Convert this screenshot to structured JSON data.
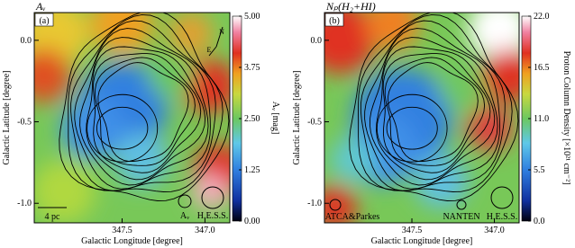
{
  "chart_data": [
    {
      "type": "map",
      "title": "Aᵥ",
      "panel_label": "(a)",
      "xlabel": "Galactic Longitude [degree]",
      "ylabel": "Galactic Latitude [degree]",
      "xlim": [
        348.03,
        346.85
      ],
      "xticks": [
        347.5,
        {
          "value": 347.0,
          "label": "347.0"
        }
      ],
      "ylim": [
        -1.12,
        0.17
      ],
      "yticks": [
        {
          "value": 0,
          "label": "0.0"
        },
        -0.5,
        {
          "value": -1,
          "label": "-1.0"
        }
      ],
      "colorbar": {
        "label": "Aᵥ [mag]",
        "lim": [
          0,
          5
        ],
        "ticks": [
          {
            "value": 0,
            "label": "0.00"
          },
          1.25,
          {
            "value": 2.5,
            "label": "2.50"
          },
          3.75,
          {
            "value": 5,
            "label": "5.00"
          }
        ]
      },
      "annotations": [
        "4 pc",
        "Aᵥ",
        "H.E.S.S.",
        "N",
        "E"
      ]
    },
    {
      "type": "map",
      "title": "Nₚ(H₂+HI)",
      "panel_label": "(b)",
      "xlabel": "Galactic Longitude [degree]",
      "ylabel": "Galactic Latitude [degree]",
      "xlim": [
        348.03,
        346.85
      ],
      "xticks": [
        347.5,
        {
          "value": 347.0,
          "label": "347.0"
        }
      ],
      "ylim": [
        -1.12,
        0.17
      ],
      "yticks": [
        {
          "value": 0,
          "label": "0.0"
        },
        -0.5,
        {
          "value": -1,
          "label": "-1.0"
        }
      ],
      "colorbar": {
        "label": "Proton Column Density [×10²¹ cm⁻²]",
        "lim": [
          0,
          22
        ],
        "ticks": [
          {
            "value": 0,
            "label": "0.0"
          },
          5.5,
          {
            "value": 11,
            "label": "11.0"
          },
          16.5,
          {
            "value": 22,
            "label": "22.0"
          }
        ]
      },
      "annotations": [
        "ATCA&Parkes",
        "NANTEN",
        "H.E.S.S."
      ]
    }
  ]
}
